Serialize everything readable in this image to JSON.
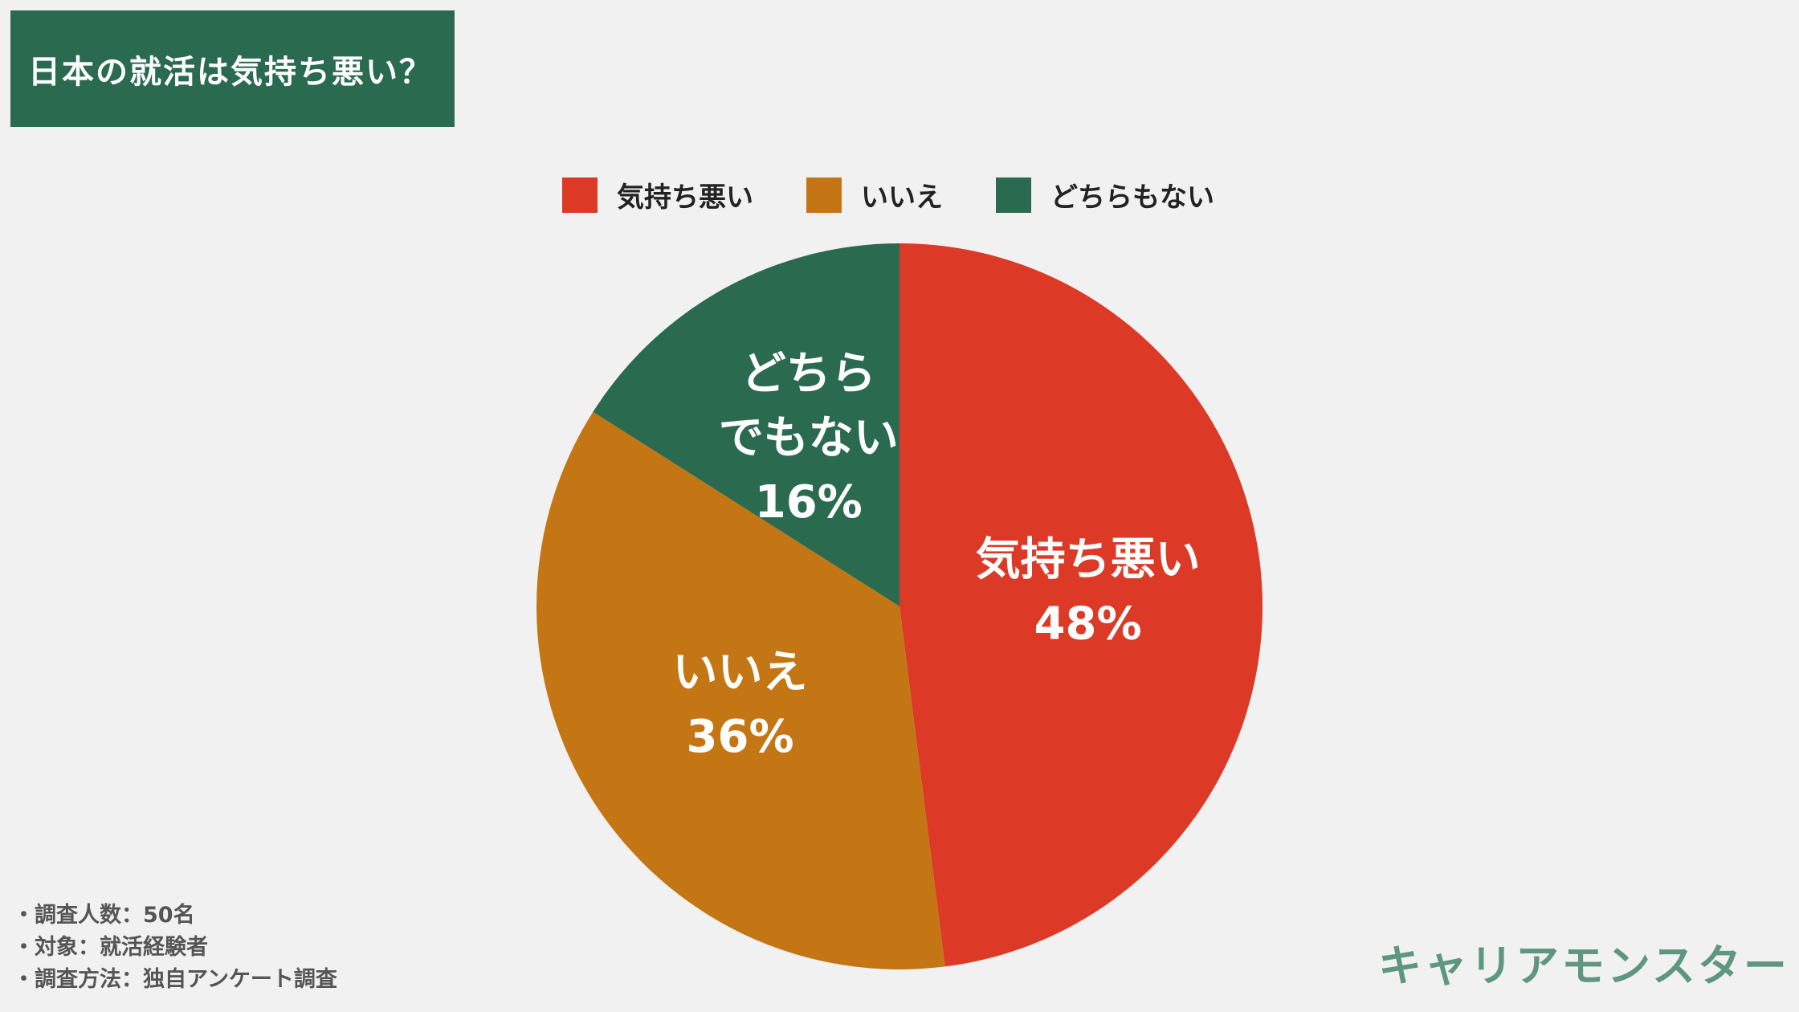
{
  "title": "日本の就活は気持ち悪い？",
  "chart_data": {
    "type": "pie",
    "categories": [
      "気持ち悪い",
      "いいえ",
      "どちらでもない"
    ],
    "values": [
      48,
      36,
      16
    ],
    "colors": [
      "#dc3a26",
      "#c47614",
      "#2a6b50"
    ],
    "legend": [
      "気持ち悪い",
      "いいえ",
      "どちらもない"
    ],
    "legend_position": "top",
    "slice_labels": [
      {
        "lines": [
          "気持ち悪い"
        ],
        "percent": "48%"
      },
      {
        "lines": [
          "いいえ"
        ],
        "percent": "36%"
      },
      {
        "lines": [
          "どちら",
          "でもない"
        ],
        "percent": "16%"
      }
    ]
  },
  "notes": [
    "・調査人数：50名",
    "・対象：就活経験者",
    "・調査方法：独自アンケート調査"
  ],
  "brand": "キャリアモンスター"
}
